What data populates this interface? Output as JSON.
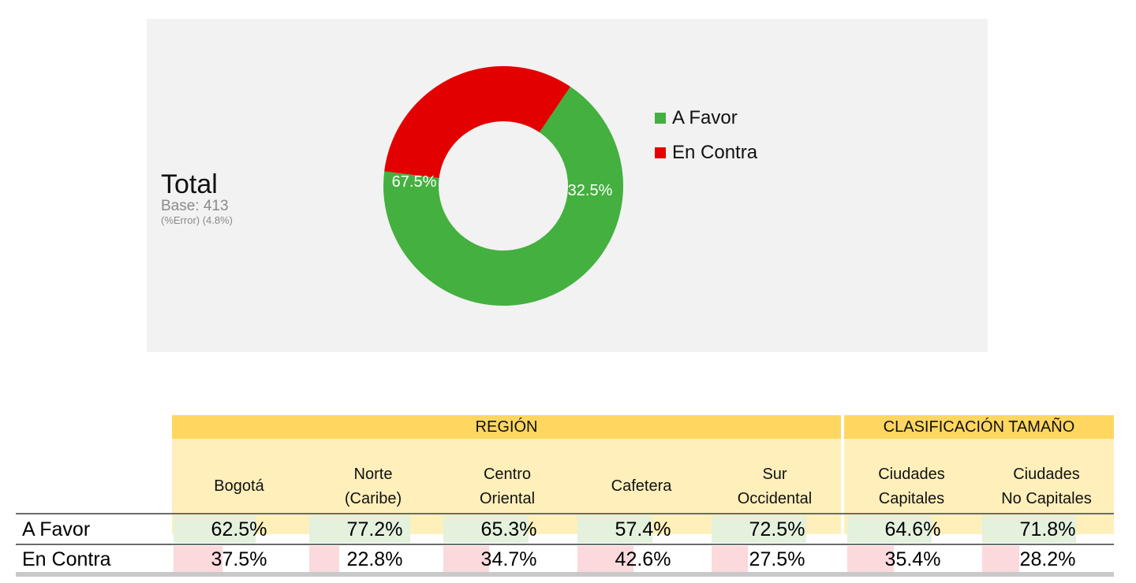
{
  "colors": {
    "a_favor": "#44b03f",
    "en_contra": "#e30000",
    "panel": "#f2f2f2",
    "header_group": "#ffd760",
    "header_col": "#ffefbb",
    "fill_favor": "#e3f1dd",
    "fill_contra": "#fbd9dd"
  },
  "summary": {
    "title": "Total",
    "base": "Base: 413",
    "error": "(%Error) (4.8%)"
  },
  "chart_data": {
    "type": "pie",
    "donut": true,
    "labels": [
      "A Favor",
      "En Contra"
    ],
    "values": [
      67.5,
      32.5
    ],
    "value_labels": [
      "67.5%",
      "32.5%"
    ],
    "legend_position": "right"
  },
  "table": {
    "groups": [
      {
        "label": "REGIÓN"
      },
      {
        "label": "CLASIFICACIÓN TAMAÑO"
      }
    ],
    "columns": [
      {
        "label": "Bogotá"
      },
      {
        "label": "Norte\n(Caribe)"
      },
      {
        "label": "Centro\nOriental"
      },
      {
        "label": "Cafetera"
      },
      {
        "label": "Sur\nOccidental"
      },
      {
        "label": "Ciudades\nCapitales"
      },
      {
        "label": "Ciudades\nNo Capitales"
      }
    ],
    "rows": [
      {
        "label": "A Favor",
        "values": [
          62.5,
          77.2,
          65.3,
          57.4,
          72.5,
          64.6,
          71.8
        ],
        "display": [
          "62.5%",
          "77.2%",
          "65.3%",
          "57.4%",
          "72.5%",
          "64.6%",
          "71.8%"
        ]
      },
      {
        "label": "En Contra",
        "values": [
          37.5,
          22.8,
          34.7,
          42.6,
          27.5,
          35.4,
          28.2
        ],
        "display": [
          "37.5%",
          "22.8%",
          "34.7%",
          "42.6%",
          "27.5%",
          "35.4%",
          "28.2%"
        ]
      }
    ]
  }
}
